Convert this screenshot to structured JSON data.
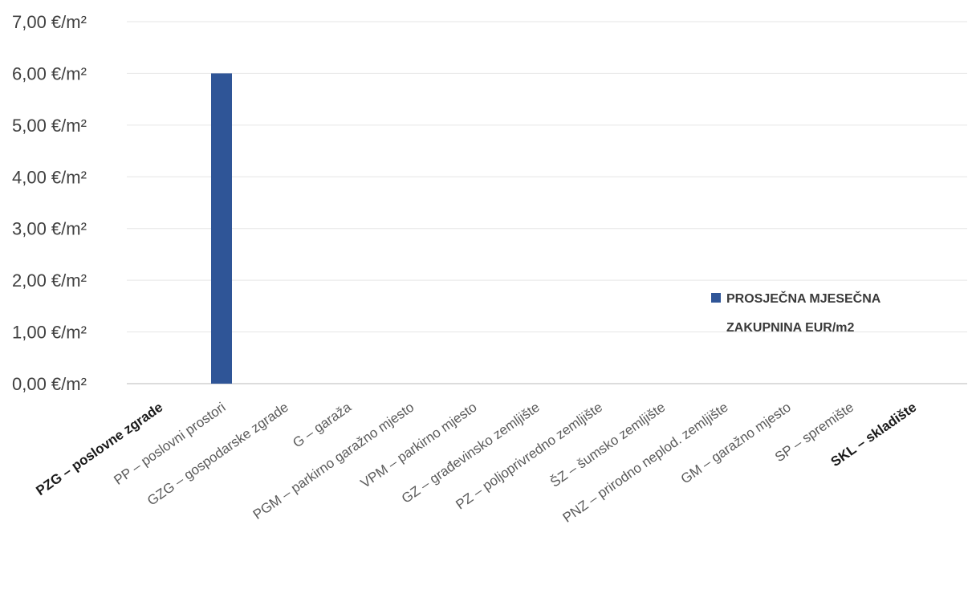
{
  "chart_data": {
    "type": "bar",
    "categories": [
      "PZG – poslovne zgrade",
      "PP – poslovni prostori",
      "GZG – gospodarske zgrade",
      "G – garaža",
      "PGM – parkirno garažno mjesto",
      "VPM – parkirno mjesto",
      "GZ – građevinsko zemljište",
      "PZ – poljoprivredno zemljište",
      "ŠZ – šumsko zemljište",
      "PNZ – prirodno neplod. zemljište",
      "GM – garažno mjesto",
      "SP – spremište",
      "SKL – skladište"
    ],
    "series": [
      {
        "name": "PROSJEČNA MJESEČNA ZAKUPNINA EUR/m2",
        "values": [
          0,
          6.0,
          0,
          0,
          0,
          0,
          0,
          0,
          0,
          0,
          0,
          0,
          0
        ],
        "color": "#2f5597"
      }
    ],
    "legend_lines": [
      "PROSJEČNA MJESEČNA",
      "ZAKUPNINA EUR/m2"
    ],
    "legend_position": "right",
    "yticks": [
      "0,00 €/m²",
      "1,00 €/m²",
      "2,00 €/m²",
      "3,00 €/m²",
      "4,00 €/m²",
      "5,00 €/m²",
      "6,00 €/m²",
      "7,00 €/m²"
    ],
    "ylim": [
      0,
      7
    ],
    "grid": true,
    "title": "",
    "xlabel": "",
    "ylabel": ""
  }
}
